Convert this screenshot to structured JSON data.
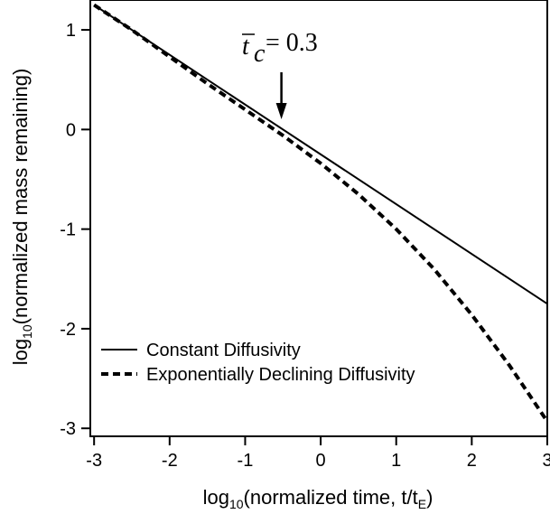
{
  "chart_data": {
    "type": "line",
    "title": "",
    "xlabel": "log",
    "xlabel_sub": "10",
    "xlabel_rest": "(normalized time, t/t",
    "xlabel_sub2": "E",
    "xlabel_end": ")",
    "ylabel": "log",
    "ylabel_sub": "10",
    "ylabel_rest": "(normalized mass remaining)",
    "xlim": [
      -3.05,
      3.0
    ],
    "ylim": [
      -3.08,
      1.3
    ],
    "x_ticks": [
      -3,
      -2,
      -1,
      0,
      1,
      2,
      3
    ],
    "y_ticks": [
      1,
      0,
      -1,
      -2,
      -3
    ],
    "grid": false,
    "legend_position": "bottom-left",
    "annotation": {
      "symbol": "t",
      "subscript": "c",
      "text": "= 0.3",
      "x": -0.52
    },
    "series": [
      {
        "name": "Constant Diffusivity",
        "style": "solid",
        "x": [
          -3.0,
          3.0
        ],
        "y": [
          1.25,
          -1.75
        ]
      },
      {
        "name": "Exponentially Declining Diffusivity",
        "style": "dashed",
        "x": [
          -3.0,
          -2.5,
          -2.0,
          -1.5,
          -1.0,
          -0.5,
          0.0,
          0.5,
          1.0,
          1.5,
          2.0,
          2.5,
          3.0
        ],
        "y": [
          1.25,
          1.0,
          0.73,
          0.46,
          0.2,
          -0.06,
          -0.34,
          -0.65,
          -1.0,
          -1.4,
          -1.86,
          -2.37,
          -2.93
        ]
      }
    ]
  }
}
